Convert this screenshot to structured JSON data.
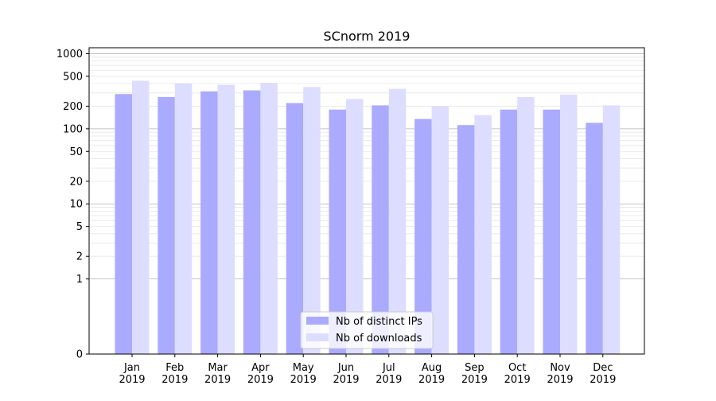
{
  "chart_data": {
    "type": "bar",
    "title": "SCnorm 2019",
    "xlabel": "",
    "ylabel": "",
    "y_scale": "symlog",
    "ylim": [
      0,
      1200
    ],
    "y_ticks": [
      0,
      1,
      2,
      5,
      10,
      20,
      50,
      100,
      200,
      500,
      1000
    ],
    "categories": [
      "Jan\n2019",
      "Feb\n2019",
      "Mar\n2019",
      "Apr\n2019",
      "May\n2019",
      "Jun\n2019",
      "Jul\n2019",
      "Aug\n2019",
      "Sep\n2019",
      "Oct\n2019",
      "Nov\n2019",
      "Dec\n2019"
    ],
    "series": [
      {
        "name": "Nb of distinct IPs",
        "color": "#aaaaff",
        "values": [
          290,
          265,
          315,
          325,
          220,
          180,
          205,
          135,
          112,
          180,
          180,
          120
        ]
      },
      {
        "name": "Nb of downloads",
        "color": "#ddddff",
        "values": [
          435,
          405,
          385,
          410,
          360,
          250,
          340,
          200,
          152,
          265,
          285,
          205
        ]
      }
    ],
    "grid": true,
    "legend_position": "bottom-center"
  }
}
